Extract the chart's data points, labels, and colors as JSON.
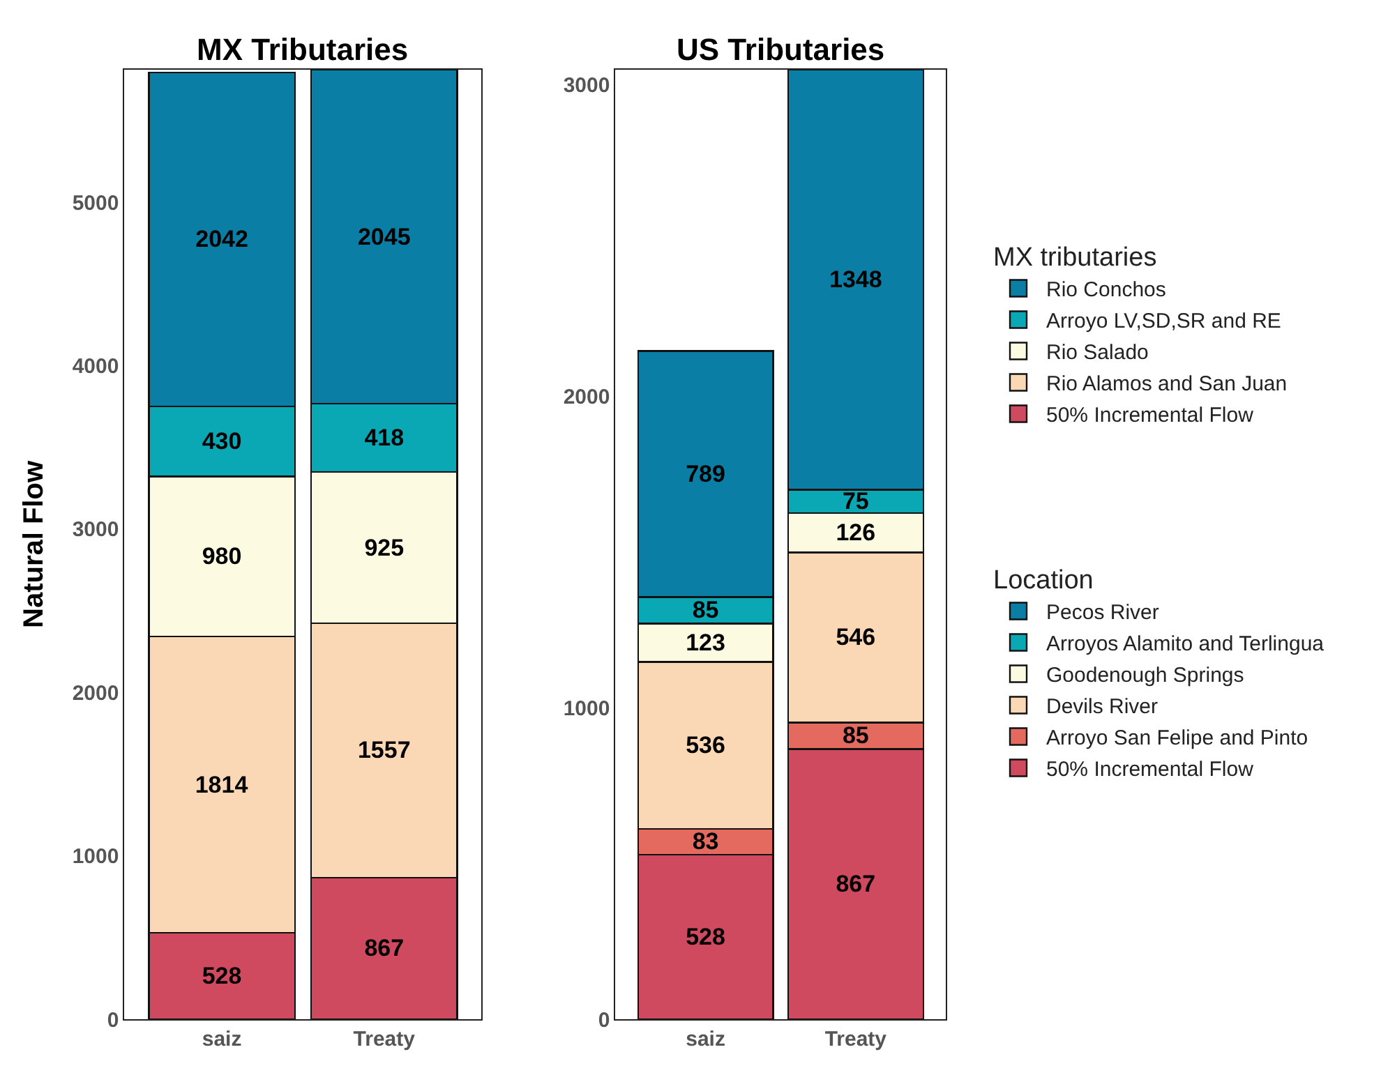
{
  "chart_data": [
    {
      "type": "bar",
      "title": "MX Tributaries",
      "ylabel": "Natural Flow",
      "legend_title": "MX tributaries",
      "categories": [
        "saiz",
        "Treaty"
      ],
      "stacked": true,
      "data_labels": true,
      "legend": "right",
      "ylim": [
        0,
        5812
      ],
      "yticks": [
        0,
        1000,
        2000,
        3000,
        4000,
        5000
      ],
      "series": [
        {
          "name": "50% Incremental Flow",
          "color": "#cf4a5e",
          "values": [
            528,
            867
          ]
        },
        {
          "name": "Rio Alamos and San Juan",
          "color": "#fad7b5",
          "values": [
            1814,
            1557
          ]
        },
        {
          "name": "Rio Salado",
          "color": "#fcfae0",
          "values": [
            980,
            925
          ]
        },
        {
          "name": "Arroyo LV,SD,SR and RE",
          "color": "#0aa8b5",
          "values": [
            430,
            418
          ]
        },
        {
          "name": "Rio Conchos",
          "color": "#0a7ea4",
          "values": [
            2042,
            2045
          ]
        }
      ]
    },
    {
      "type": "bar",
      "title": "US Tributaries",
      "legend_title": "Location",
      "categories": [
        "saiz",
        "Treaty"
      ],
      "stacked": true,
      "data_labels": true,
      "legend": "right",
      "ylim": [
        0,
        3047
      ],
      "yticks": [
        0,
        1000,
        2000,
        3000
      ],
      "series": [
        {
          "name": "50% Incremental Flow",
          "color": "#cf4a5e",
          "values": [
            528,
            867
          ]
        },
        {
          "name": "Arroyo San Felipe and Pinto",
          "color": "#e46a5f",
          "values": [
            83,
            85
          ]
        },
        {
          "name": "Devils River",
          "color": "#fad7b5",
          "values": [
            536,
            546
          ]
        },
        {
          "name": "Goodenough Springs",
          "color": "#fcfae0",
          "values": [
            123,
            126
          ]
        },
        {
          "name": "Arroyos Alamito and Terlingua",
          "color": "#0aa8b5",
          "values": [
            85,
            75
          ]
        },
        {
          "name": "Pecos River",
          "color": "#0a7ea4",
          "values": [
            789,
            1348
          ]
        }
      ]
    }
  ]
}
